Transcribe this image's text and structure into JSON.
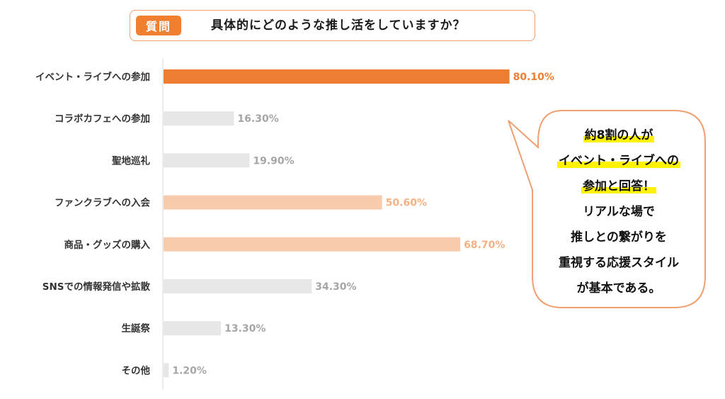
{
  "question": {
    "badge": "質問",
    "text": "具体的にどのような推し活をしていますか？"
  },
  "chart_data": {
    "type": "bar",
    "orientation": "horizontal",
    "categories": [
      "イベント・ライブへの参加",
      "コラボカフェへの参加",
      "聖地巡礼",
      "ファンクラブへの入会",
      "商品・グッズの購入",
      "SNSでの情報発信や拡散",
      "生誕祭",
      "その他"
    ],
    "values": [
      80.1,
      16.3,
      19.9,
      50.6,
      68.7,
      34.3,
      13.3,
      1.2
    ],
    "value_labels": [
      "80.10%",
      "16.30%",
      "19.90%",
      "50.60%",
      "68.70%",
      "34.30%",
      "13.30%",
      "1.20%"
    ],
    "xlim": [
      0,
      100
    ],
    "grid": false,
    "legend": "none",
    "bar_colors": [
      "#ed7d31",
      "#e6e6e6",
      "#e6e6e6",
      "#f8cbad",
      "#f8cbad",
      "#e6e6e6",
      "#e6e6e6",
      "#e6e6e6"
    ],
    "label_colors": [
      "#ed7d31",
      "#a6a6a6",
      "#a6a6a6",
      "#f4b183",
      "#f4b183",
      "#a6a6a6",
      "#a6a6a6",
      "#a6a6a6"
    ]
  },
  "callout": {
    "lines": [
      {
        "text": "約8割の人が",
        "highlight": true
      },
      {
        "text": "イベント・ライブへの",
        "highlight": true
      },
      {
        "text": "参加と回答！",
        "highlight": true
      },
      {
        "text": "リアルな場で",
        "highlight": false
      },
      {
        "text": "推しとの繋がりを",
        "highlight": false
      },
      {
        "text": "重視する応援スタイル",
        "highlight": false
      },
      {
        "text": "が基本である。",
        "highlight": false
      }
    ]
  },
  "colors": {
    "accent": "#f07f2f",
    "box_border": "#f0a070"
  }
}
